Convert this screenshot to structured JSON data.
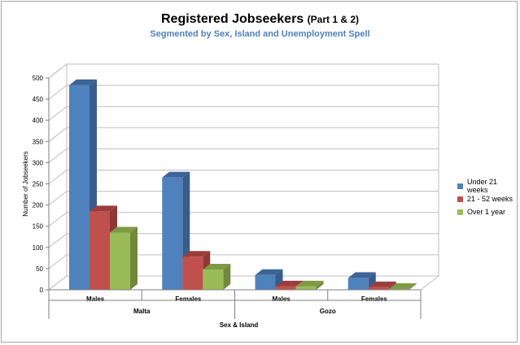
{
  "chart_data": {
    "type": "bar",
    "title": "Registered Jobseekers",
    "title_suffix": "(Part 1 & 2)",
    "subtitle": "Segmented by Sex, Island and Unemployment Spell",
    "ylabel": "Number of Jobseekers",
    "xlabel": "Sex & Island",
    "ylim": [
      0,
      500
    ],
    "yticks": [
      0,
      50,
      100,
      150,
      200,
      250,
      300,
      350,
      400,
      450,
      500
    ],
    "categories": [
      "Males",
      "Females",
      "Males",
      "Females"
    ],
    "groups": [
      {
        "label": "Malta",
        "span": [
          0,
          1
        ]
      },
      {
        "label": "Gozo",
        "span": [
          2,
          3
        ]
      }
    ],
    "series": [
      {
        "name": "Under 21 weeks",
        "color": "#4f81bd",
        "side": "#385d8a",
        "top": "#3c6496",
        "values": [
          483,
          265,
          35,
          28
        ]
      },
      {
        "name": "21 - 52 weeks",
        "color": "#c0504d",
        "side": "#8c3836",
        "top": "#9b3d3a",
        "values": [
          185,
          78,
          8,
          6
        ]
      },
      {
        "name": "Over 1 year",
        "color": "#9bbb59",
        "side": "#71893f",
        "top": "#7d9a45",
        "values": [
          135,
          48,
          8,
          2
        ]
      }
    ],
    "grid": true,
    "legend_position": "right"
  }
}
